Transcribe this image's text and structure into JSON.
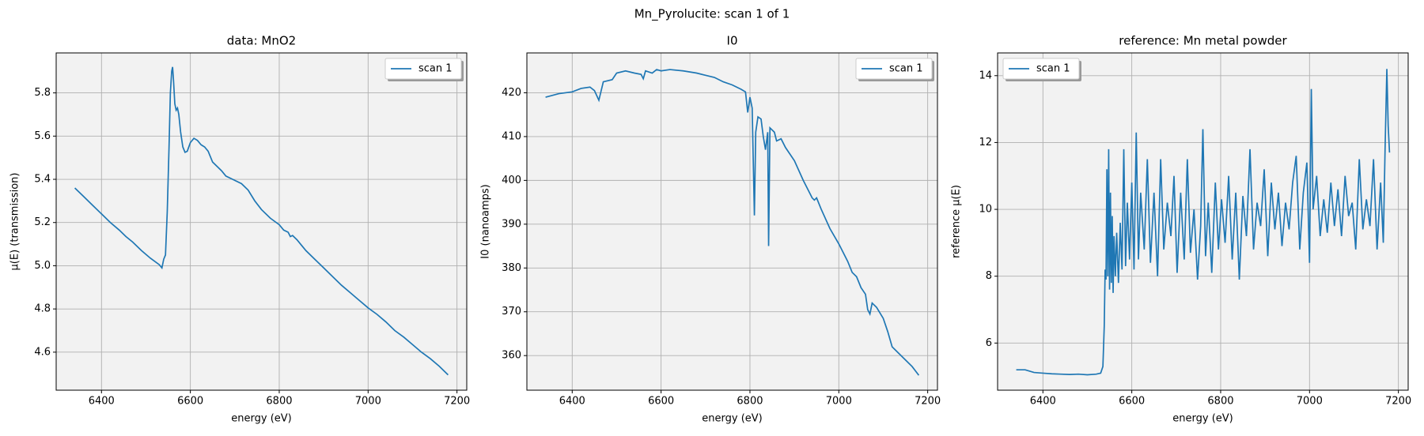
{
  "title": "Mn_Pyrolucite: scan 1 of 1",
  "chart_data": [
    {
      "type": "line",
      "title": "data: MnO2",
      "xlabel": "energy (eV)",
      "ylabel": "μ(E) (transmission)",
      "xlim": [
        6298,
        7222
      ],
      "xticks": [
        6400,
        6600,
        6800,
        7000,
        7200
      ],
      "ylim": [
        4.424,
        5.985
      ],
      "yticks": [
        4.6,
        4.8,
        {
          "value": 5,
          "label": "5.0"
        },
        5.2,
        5.4,
        5.6,
        5.8
      ],
      "grid": true,
      "legend": "upper right",
      "x": [
        6340,
        6360,
        6380,
        6400,
        6420,
        6440,
        6455,
        6470,
        6490,
        6510,
        6530,
        6536,
        6540,
        6544,
        6548,
        6552,
        6555,
        6558,
        6560,
        6562,
        6565,
        6568,
        6571,
        6574,
        6578,
        6583,
        6588,
        6593,
        6600,
        6608,
        6616,
        6624,
        6632,
        6640,
        6650,
        6660,
        6670,
        6680,
        6690,
        6700,
        6715,
        6730,
        6745,
        6760,
        6780,
        6800,
        6810,
        6820,
        6825,
        6830,
        6840,
        6860,
        6880,
        6900,
        6920,
        6940,
        6960,
        6980,
        7000,
        7020,
        7040,
        7060,
        7080,
        7100,
        7120,
        7140,
        7160,
        7180
      ],
      "series": [
        {
          "name": "scan 1",
          "color": "#1f77b4",
          "values": [
            5.36,
            5.32,
            5.28,
            5.24,
            5.2,
            5.165,
            5.135,
            5.11,
            5.07,
            5.035,
            5.005,
            4.99,
            5.03,
            5.05,
            5.25,
            5.55,
            5.8,
            5.9,
            5.92,
            5.86,
            5.75,
            5.72,
            5.73,
            5.7,
            5.62,
            5.55,
            5.525,
            5.53,
            5.57,
            5.59,
            5.58,
            5.56,
            5.55,
            5.53,
            5.48,
            5.46,
            5.44,
            5.415,
            5.405,
            5.395,
            5.38,
            5.35,
            5.3,
            5.26,
            5.22,
            5.19,
            5.165,
            5.155,
            5.135,
            5.14,
            5.12,
            5.07,
            5.03,
            4.99,
            4.95,
            4.91,
            4.875,
            4.84,
            4.805,
            4.775,
            4.74,
            4.7,
            4.67,
            4.635,
            4.6,
            4.57,
            4.535,
            4.495
          ]
        }
      ]
    },
    {
      "type": "line",
      "title": "I0",
      "xlabel": "energy (eV)",
      "ylabel": "I0 (nanoamps)",
      "xlim": [
        6298,
        7222
      ],
      "xticks": [
        6400,
        6600,
        6800,
        7000,
        7200
      ],
      "ylim": [
        352.1,
        429.1
      ],
      "yticks": [
        360,
        370,
        380,
        390,
        400,
        410,
        420
      ],
      "grid": true,
      "legend": "upper right",
      "x": [
        6340,
        6370,
        6400,
        6420,
        6440,
        6450,
        6460,
        6470,
        6490,
        6500,
        6520,
        6540,
        6555,
        6560,
        6565,
        6580,
        6590,
        6600,
        6620,
        6650,
        6680,
        6700,
        6720,
        6740,
        6760,
        6780,
        6790,
        6795,
        6800,
        6805,
        6810,
        6813,
        6818,
        6825,
        6830,
        6835,
        6840,
        6842,
        6845,
        6855,
        6860,
        6870,
        6880,
        6900,
        6920,
        6940,
        6945,
        6950,
        6960,
        6980,
        7000,
        7020,
        7030,
        7040,
        7050,
        7060,
        7065,
        7070,
        7075,
        7085,
        7100,
        7110,
        7120,
        7130,
        7150,
        7165,
        7180
      ],
      "series": [
        {
          "name": "scan 1",
          "color": "#1f77b4",
          "values": [
            419,
            419.8,
            420.2,
            421,
            421.3,
            420.5,
            418.3,
            422.5,
            423,
            424.5,
            425,
            424.5,
            424.2,
            423.2,
            425,
            424.5,
            425.3,
            425,
            425.3,
            425,
            424.5,
            424,
            423.5,
            422.5,
            421.8,
            420.8,
            420.2,
            415.5,
            419,
            416.5,
            392,
            411,
            414.5,
            414,
            410,
            407,
            411,
            385,
            412,
            411,
            409,
            409.5,
            407.5,
            404.5,
            400,
            396,
            395.5,
            396,
            393.5,
            389,
            385.5,
            381.5,
            379,
            378,
            375.5,
            374,
            370.5,
            369.5,
            372,
            371,
            368.5,
            365.5,
            362,
            361,
            359,
            357.5,
            355.5
          ]
        }
      ]
    },
    {
      "type": "line",
      "title": "reference: Mn metal powder",
      "xlabel": "energy (eV)",
      "ylabel": "reference μ(E)",
      "xlim": [
        6298,
        7222
      ],
      "xticks": [
        6400,
        6600,
        6800,
        7000,
        7200
      ],
      "ylim": [
        4.59,
        14.68
      ],
      "yticks": [
        6,
        8,
        10,
        12,
        14
      ],
      "grid": true,
      "legend": "upper left",
      "x": [
        6340,
        6360,
        6380,
        6400,
        6420,
        6440,
        6460,
        6480,
        6500,
        6520,
        6530,
        6535,
        6538,
        6540,
        6542,
        6544,
        6546,
        6548,
        6550,
        6552,
        6554,
        6556,
        6558,
        6560,
        6563,
        6566,
        6570,
        6574,
        6578,
        6582,
        6586,
        6590,
        6595,
        6600,
        6605,
        6610,
        6615,
        6620,
        6628,
        6635,
        6642,
        6650,
        6658,
        6665,
        6672,
        6680,
        6688,
        6695,
        6702,
        6710,
        6718,
        6725,
        6732,
        6740,
        6748,
        6755,
        6760,
        6766,
        6772,
        6780,
        6788,
        6795,
        6802,
        6810,
        6818,
        6826,
        6834,
        6842,
        6850,
        6858,
        6866,
        6874,
        6882,
        6890,
        6898,
        6906,
        6914,
        6922,
        6930,
        6938,
        6946,
        6954,
        6962,
        6970,
        6978,
        6986,
        6994,
        7000,
        7004,
        7008,
        7016,
        7024,
        7032,
        7040,
        7048,
        7056,
        7064,
        7072,
        7080,
        7088,
        7096,
        7104,
        7112,
        7120,
        7128,
        7136,
        7144,
        7152,
        7160,
        7166,
        7170,
        7174,
        7177,
        7180
      ],
      "series": [
        {
          "name": "scan 1",
          "color": "#1f77b4",
          "values": [
            5.2,
            5.2,
            5.12,
            5.1,
            5.08,
            5.07,
            5.06,
            5.07,
            5.05,
            5.07,
            5.1,
            5.3,
            6.5,
            8.2,
            7.9,
            11.2,
            8,
            11.8,
            7.6,
            10.5,
            7.8,
            9.8,
            7.5,
            9.2,
            8,
            9.3,
            7.8,
            9.6,
            8.2,
            11.8,
            8.3,
            10.2,
            8.5,
            10.8,
            8.2,
            12.3,
            8.5,
            10.5,
            8.8,
            11.5,
            8.4,
            10.5,
            8,
            11.5,
            8.8,
            10.2,
            9.2,
            11,
            8.1,
            10.5,
            8.5,
            11.5,
            8.7,
            10,
            7.9,
            9.5,
            12.4,
            8.6,
            10.2,
            8.1,
            10.8,
            8.8,
            10.3,
            9,
            11,
            8.5,
            10.5,
            7.9,
            10.4,
            9.2,
            11.8,
            8.8,
            10.2,
            9.5,
            11.2,
            8.6,
            10.8,
            9.4,
            10.5,
            8.9,
            10.2,
            9.4,
            10.8,
            11.6,
            8.8,
            10.5,
            11.4,
            8.4,
            13.6,
            10,
            11,
            9.2,
            10.3,
            9.3,
            10.8,
            9.5,
            10.6,
            9.2,
            11,
            9.8,
            10.2,
            8.8,
            11.5,
            9.4,
            10.3,
            9.5,
            11.5,
            8.8,
            10.8,
            9,
            11.8,
            14.2,
            12.5,
            11.7
          ]
        }
      ]
    }
  ]
}
